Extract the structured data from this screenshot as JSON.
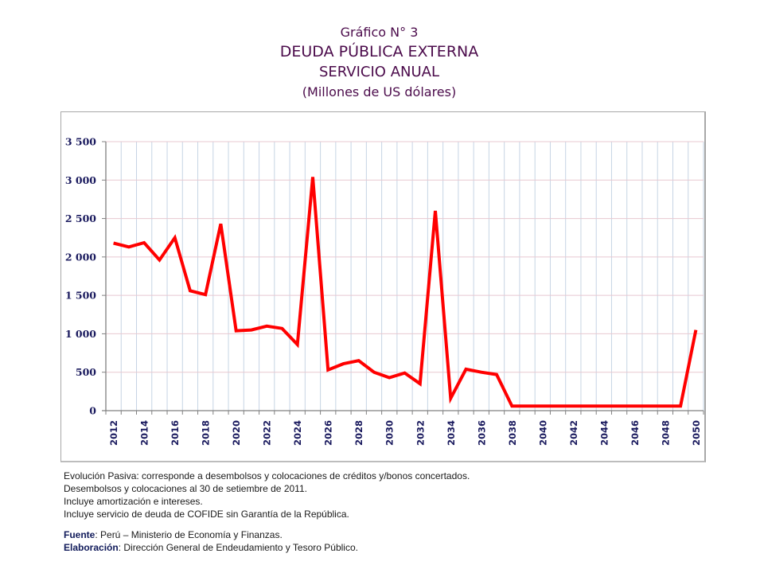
{
  "header": {
    "line1": "Gráfico N° 3",
    "line2": "DEUDA PÚBLICA EXTERNA",
    "line3": "SERVICIO ANUAL",
    "line4": "(Millones de US dólares)"
  },
  "colors": {
    "title": "#4b0b4b",
    "line": "#ff0000",
    "axis_labels": "#1a1a5e",
    "grid_vertical": "#c6d4e4",
    "grid_horizontal": "#e8c8d0"
  },
  "chart_data": {
    "type": "line",
    "title": "DEUDA PÚBLICA EXTERNA - SERVICIO ANUAL",
    "xlabel": "",
    "ylabel": "Millones de US dólares",
    "ylim": [
      0,
      3500
    ],
    "yticks": [
      "0",
      "500",
      "1 000",
      "1 500",
      "2 000",
      "2 500",
      "3 000",
      "3 500"
    ],
    "ytick_values": [
      0,
      500,
      1000,
      1500,
      2000,
      2500,
      3000,
      3500
    ],
    "xtick_labels": [
      "2012",
      "2014",
      "2016",
      "2018",
      "2020",
      "2022",
      "2024",
      "2026",
      "2028",
      "2030",
      "2032",
      "2034",
      "2036",
      "2038",
      "2040",
      "2042",
      "2044",
      "2046",
      "2048",
      "2050"
    ],
    "grid": true,
    "legend": "none",
    "x": [
      2012,
      2013,
      2014,
      2015,
      2016,
      2017,
      2018,
      2019,
      2020,
      2021,
      2022,
      2023,
      2024,
      2025,
      2026,
      2027,
      2028,
      2029,
      2030,
      2031,
      2032,
      2033,
      2034,
      2035,
      2036,
      2037,
      2038,
      2039,
      2040,
      2041,
      2042,
      2043,
      2044,
      2045,
      2046,
      2047,
      2048,
      2049,
      2050
    ],
    "series": [
      {
        "name": "Servicio anual",
        "values": [
          2180,
          2130,
          2185,
          1960,
          2250,
          1560,
          1510,
          2430,
          1040,
          1050,
          1100,
          1070,
          860,
          3040,
          530,
          610,
          650,
          500,
          430,
          490,
          350,
          2600,
          160,
          540,
          500,
          470,
          60,
          60,
          60,
          60,
          60,
          60,
          60,
          60,
          60,
          60,
          60,
          60,
          1050
        ]
      }
    ]
  },
  "notes": {
    "line1": "Evolución Pasiva: corresponde a desembolsos y colocaciones de créditos y/bonos concertados.",
    "line2": "Desembolsos y colocaciones al 30 de setiembre de 2011.",
    "line3": "Incluye amortización e intereses.",
    "line4": "Incluye servicio de deuda de COFIDE sin Garantía de la República.",
    "source_label": "Fuente",
    "source_text": ": Perú – Ministerio de Economía y Finanzas.",
    "credit_label": "Elaboración",
    "credit_text": ":  Dirección General de Endeudamiento y Tesoro Público."
  }
}
